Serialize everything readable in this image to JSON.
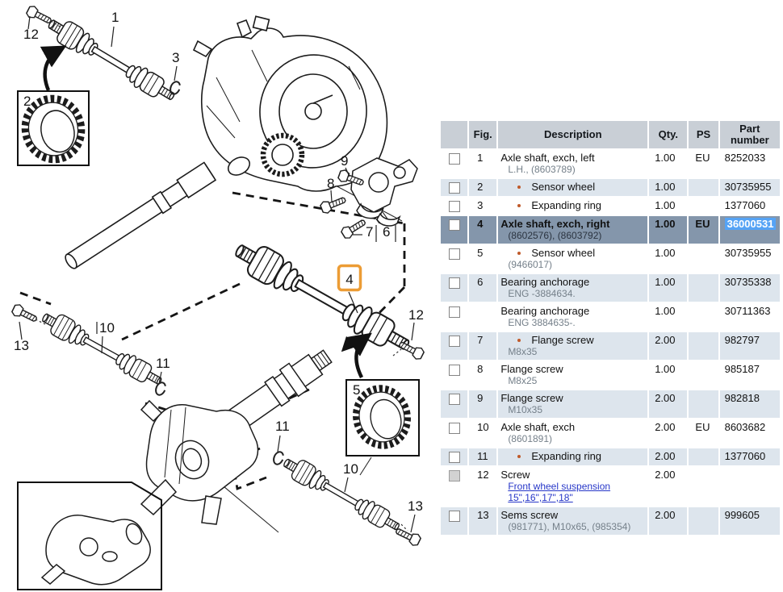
{
  "diagram": {
    "callouts": [
      {
        "label": "1"
      },
      {
        "label": "12"
      },
      {
        "label": "2"
      },
      {
        "label": "3"
      },
      {
        "label": "9"
      },
      {
        "label": "8"
      },
      {
        "label": "7"
      },
      {
        "label": "6"
      },
      {
        "label": "4",
        "highlighted": true
      },
      {
        "label": "12"
      },
      {
        "label": "13"
      },
      {
        "label": "10"
      },
      {
        "label": "11"
      },
      {
        "label": "11"
      },
      {
        "label": "5"
      },
      {
        "label": "10"
      },
      {
        "label": "13"
      }
    ],
    "highlighted_callout": "4"
  },
  "table": {
    "headers": {
      "fig": "Fig.",
      "description": "Description",
      "qty": "Qty.",
      "ps": "PS",
      "part": "Part number"
    },
    "rows": [
      {
        "fig": "1",
        "bullet": false,
        "desc": "Axle shaft, exch, left",
        "sub": "L.H., (8603789)",
        "link": false,
        "qty": "1.00",
        "ps": "EU",
        "part": "8252033",
        "highlight_part": false,
        "state": "plain",
        "checkbox_enabled": true
      },
      {
        "fig": "2",
        "bullet": true,
        "desc": "Sensor wheel",
        "sub": "",
        "link": false,
        "qty": "1.00",
        "ps": "",
        "part": "30735955",
        "highlight_part": false,
        "state": "tint",
        "checkbox_enabled": true
      },
      {
        "fig": "3",
        "bullet": true,
        "desc": "Expanding ring",
        "sub": "",
        "link": false,
        "qty": "1.00",
        "ps": "",
        "part": "1377060",
        "highlight_part": false,
        "state": "plain",
        "checkbox_enabled": true
      },
      {
        "fig": "4",
        "bullet": false,
        "desc": "Axle shaft, exch, right",
        "sub": "(8602576), (8603792)",
        "link": false,
        "qty": "1.00",
        "ps": "EU",
        "part": "36000531",
        "highlight_part": true,
        "state": "sel",
        "checkbox_enabled": true
      },
      {
        "fig": "5",
        "bullet": true,
        "desc": "Sensor wheel",
        "sub": "(9466017)",
        "link": false,
        "qty": "1.00",
        "ps": "",
        "part": "30735955",
        "highlight_part": false,
        "state": "plain",
        "checkbox_enabled": true
      },
      {
        "fig": "6",
        "bullet": false,
        "desc": "Bearing anchorage",
        "sub": "ENG -3884634.",
        "link": false,
        "qty": "1.00",
        "ps": "",
        "part": "30735338",
        "highlight_part": false,
        "state": "tint",
        "checkbox_enabled": true
      },
      {
        "fig": "",
        "bullet": false,
        "desc": "Bearing anchorage",
        "sub": "ENG 3884635-.",
        "link": false,
        "qty": "1.00",
        "ps": "",
        "part": "30711363",
        "highlight_part": false,
        "state": "plain",
        "checkbox_enabled": true
      },
      {
        "fig": "7",
        "bullet": true,
        "desc": "Flange screw",
        "sub": "M8x35",
        "link": false,
        "qty": "2.00",
        "ps": "",
        "part": "982797",
        "highlight_part": false,
        "state": "tint",
        "checkbox_enabled": true
      },
      {
        "fig": "8",
        "bullet": false,
        "desc": "Flange screw",
        "sub": "M8x25",
        "link": false,
        "qty": "1.00",
        "ps": "",
        "part": "985187",
        "highlight_part": false,
        "state": "plain",
        "checkbox_enabled": true
      },
      {
        "fig": "9",
        "bullet": false,
        "desc": "Flange screw",
        "sub": "M10x35",
        "link": false,
        "qty": "2.00",
        "ps": "",
        "part": "982818",
        "highlight_part": false,
        "state": "tint",
        "checkbox_enabled": true
      },
      {
        "fig": "10",
        "bullet": false,
        "desc": "Axle shaft, exch",
        "sub": "(8601891)",
        "link": false,
        "qty": "2.00",
        "ps": "EU",
        "part": "8603682",
        "highlight_part": false,
        "state": "plain",
        "checkbox_enabled": true
      },
      {
        "fig": "11",
        "bullet": true,
        "desc": "Expanding ring",
        "sub": "",
        "link": false,
        "qty": "2.00",
        "ps": "",
        "part": "1377060",
        "highlight_part": false,
        "state": "tint",
        "checkbox_enabled": true
      },
      {
        "fig": "12",
        "bullet": false,
        "desc": "Screw",
        "sub": "Front wheel suspension 15\",16\",17\",18\"",
        "link": true,
        "qty": "2.00",
        "ps": "",
        "part": "",
        "highlight_part": false,
        "state": "plain",
        "checkbox_enabled": false
      },
      {
        "fig": "13",
        "bullet": false,
        "desc": "Sems screw",
        "sub": "(981771), M10x65, (985354)",
        "link": false,
        "qty": "2.00",
        "ps": "",
        "part": "999605",
        "highlight_part": false,
        "state": "tint",
        "checkbox_enabled": true
      }
    ]
  },
  "colors": {
    "selected_row_bg": "#8496AB",
    "row_tint_bg": "#DDE5ED",
    "header_bg": "#C9CFD6",
    "part_highlight_bg": "#55A3F5",
    "link_color": "#2636C8",
    "bullet_color": "#C05A2A",
    "callout_highlight": "#EC9C35"
  }
}
